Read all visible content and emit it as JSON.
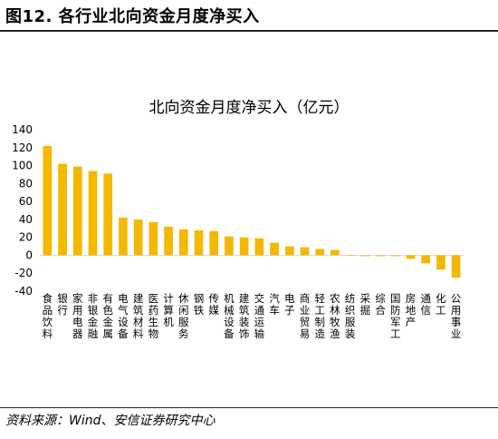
{
  "figure": {
    "title": "图12. 各行业北向资金月度净买入",
    "source": "资料来源：Wind、安信证券研究中心"
  },
  "chart_data": {
    "type": "bar",
    "title": "北向资金月度净买入（亿元）",
    "xlabel": "",
    "ylabel": "",
    "ylim": [
      -40,
      140
    ],
    "yticks": [
      -40,
      -20,
      0,
      20,
      40,
      60,
      80,
      100,
      120,
      140
    ],
    "grid": false,
    "legend": "none",
    "bar_color": "#F5B800",
    "categories": [
      "食品饮料",
      "银行",
      "家用电器",
      "非银金融",
      "有色金属",
      "电气设备",
      "建筑材料",
      "医药生物",
      "计算机",
      "休闲服务",
      "钢铁",
      "传媒",
      "机械设备",
      "建筑装饰",
      "交通运输",
      "汽车",
      "电子",
      "商业贸易",
      "轻工制造",
      "农林牧渔",
      "纺织服装",
      "采掘",
      "综合",
      "国防军工",
      "房地产",
      "通信",
      "化工",
      "公用事业"
    ],
    "values": [
      122,
      102,
      99,
      94,
      91,
      42,
      40,
      37,
      32,
      29,
      28,
      27,
      21,
      20,
      19,
      14,
      10,
      9,
      7,
      6,
      0,
      -1,
      -1,
      -1,
      -4,
      -9,
      -16,
      -25
    ]
  }
}
